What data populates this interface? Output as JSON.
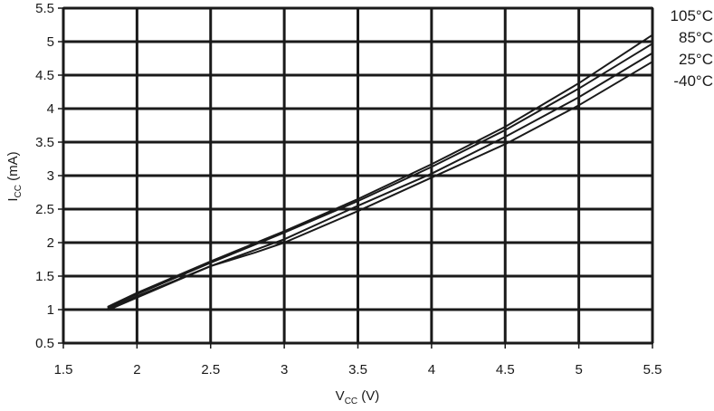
{
  "chart_data": {
    "type": "line",
    "xlabel": {
      "main": "V",
      "sub": "CC",
      "unit": " (V)"
    },
    "ylabel": {
      "main": "I",
      "sub": "CC",
      "unit": " (mA)"
    },
    "xlim": [
      1.5,
      5.5
    ],
    "ylim": [
      0.5,
      5.5
    ],
    "x_ticks": [
      1.5,
      2,
      2.5,
      3,
      3.5,
      4,
      4.5,
      5,
      5.5
    ],
    "y_ticks": [
      0.5,
      1,
      1.5,
      2,
      2.5,
      3,
      3.5,
      4,
      4.5,
      5,
      5.5
    ],
    "x_tick_labels": [
      "1.5",
      "2",
      "2.5",
      "3",
      "3.5",
      "4",
      "4.5",
      "5",
      "5.5"
    ],
    "y_tick_labels": [
      "0.5",
      "1",
      "1.5",
      "2",
      "2.5",
      "3",
      "3.5",
      "4",
      "4.5",
      "5",
      "5.5"
    ],
    "grid": true,
    "legend_position": "right-top",
    "line_color": "#1a1a1a",
    "series": [
      {
        "name": "105°C",
        "x": [
          1.8,
          2.0,
          2.5,
          3.0,
          3.5,
          4.0,
          4.5,
          5.0,
          5.5
        ],
        "y": [
          1.04,
          1.25,
          1.72,
          2.17,
          2.65,
          3.17,
          3.73,
          4.38,
          5.1
        ]
      },
      {
        "name": "85°C",
        "x": [
          1.8,
          2.0,
          2.5,
          3.0,
          3.5,
          4.0,
          4.5,
          5.0,
          5.5
        ],
        "y": [
          1.02,
          1.23,
          1.7,
          2.15,
          2.62,
          3.13,
          3.68,
          4.3,
          4.97
        ]
      },
      {
        "name": "25°C",
        "x": [
          1.8,
          2.0,
          2.5,
          3.0,
          3.5,
          4.0,
          4.5,
          5.0,
          5.5
        ],
        "y": [
          1.0,
          1.2,
          1.65,
          2.05,
          2.55,
          3.03,
          3.58,
          4.17,
          4.83
        ]
      },
      {
        "name": "-40°C",
        "x": [
          1.8,
          2.0,
          2.5,
          2.8,
          3.0,
          3.5,
          4.0,
          4.5,
          5.0,
          5.5
        ],
        "y": [
          0.99,
          1.18,
          1.65,
          1.85,
          2.0,
          2.47,
          2.97,
          3.47,
          4.05,
          4.7
        ]
      }
    ]
  }
}
